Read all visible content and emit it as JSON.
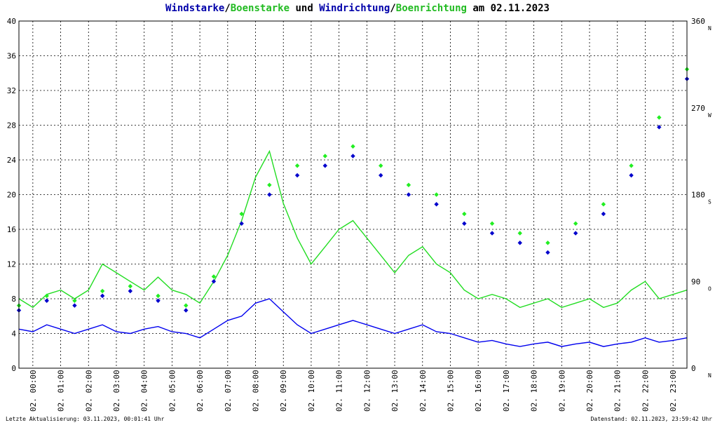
{
  "title": {
    "part1": "Windstarke",
    "sep1": "/",
    "part2": "Boenstarke",
    "part3": " und ",
    "part4": "Windrichtung",
    "sep2": "/",
    "part5": "Boenrichtung",
    "part6": " am 02.11.2023"
  },
  "footer": {
    "left": "Letzte Aktualisierung: 03.11.2023, 00:01:41 Uhr",
    "right": "Datenstand: 02.11.2023, 23:59:42 Uhr"
  },
  "colors": {
    "wind": "#0000ee",
    "gust": "#22dd22",
    "direction": "#0000cc",
    "gust_direction": "#22ee22",
    "grid": "#000000"
  },
  "chart_data": {
    "type": "line",
    "x_label_prefix": "02.",
    "x_ticks": [
      "00:00",
      "01:00",
      "02:00",
      "03:00",
      "04:00",
      "05:00",
      "06:00",
      "07:00",
      "08:00",
      "09:00",
      "10:00",
      "11:00",
      "12:00",
      "13:00",
      "14:00",
      "15:00",
      "16:00",
      "17:00",
      "18:00",
      "19:00",
      "20:00",
      "21:00",
      "22:00",
      "23:00"
    ],
    "xlim_hours": [
      0,
      24
    ],
    "ylim_left": [
      0,
      40
    ],
    "y_ticks_left": [
      "0",
      "4",
      "8",
      "12",
      "16",
      "20",
      "24",
      "28",
      "32",
      "36",
      "40"
    ],
    "ylim_right": [
      0,
      360
    ],
    "y_ticks_right": [
      {
        "value": 0,
        "label": "0",
        "dir": "N"
      },
      {
        "value": 90,
        "label": "90",
        "dir": "O"
      },
      {
        "value": 180,
        "label": "180",
        "dir": "S"
      },
      {
        "value": 270,
        "label": "270",
        "dir": "W"
      },
      {
        "value": 360,
        "label": "360",
        "dir": "N"
      }
    ],
    "grid": true,
    "series": [
      {
        "name": "Windstarke",
        "axis": "left",
        "hours": [
          0,
          0.5,
          1,
          1.5,
          2,
          2.5,
          3,
          3.5,
          4,
          4.5,
          5,
          5.5,
          6,
          6.5,
          7,
          7.5,
          8,
          8.5,
          9,
          9.5,
          10,
          10.5,
          11,
          11.5,
          12,
          12.5,
          13,
          13.5,
          14,
          14.5,
          15,
          15.5,
          16,
          16.5,
          17,
          17.5,
          18,
          18.5,
          19,
          19.5,
          20,
          20.5,
          21,
          21.5,
          22,
          22.5,
          23,
          23.5,
          24
        ],
        "values": [
          4.5,
          4.2,
          5,
          4.5,
          4,
          4.5,
          5,
          4.2,
          4,
          4.5,
          4.8,
          4.2,
          4,
          3.5,
          4.5,
          5.5,
          6,
          7.5,
          8,
          6.5,
          5,
          4,
          4.5,
          5,
          5.5,
          5,
          4.5,
          4,
          4.5,
          5,
          4.2,
          4,
          3.5,
          3,
          3.2,
          2.8,
          2.5,
          2.8,
          3,
          2.5,
          2.8,
          3,
          2.5,
          2.8,
          3,
          3.5,
          3,
          3.2,
          3.5
        ]
      },
      {
        "name": "Boenstarke",
        "axis": "left",
        "hours": [
          0,
          0.5,
          1,
          1.5,
          2,
          2.5,
          3,
          3.5,
          4,
          4.5,
          5,
          5.5,
          6,
          6.5,
          7,
          7.5,
          8,
          8.5,
          9,
          9.5,
          10,
          10.5,
          11,
          11.5,
          12,
          12.5,
          13,
          13.5,
          14,
          14.5,
          15,
          15.5,
          16,
          16.5,
          17,
          17.5,
          18,
          18.5,
          19,
          19.5,
          20,
          20.5,
          21,
          21.5,
          22,
          22.5,
          23,
          23.5,
          24
        ],
        "values": [
          8,
          7,
          8.5,
          9,
          8,
          9,
          12,
          11,
          10,
          9,
          10.5,
          9,
          8.5,
          7.5,
          10,
          13,
          17,
          22,
          25,
          19,
          15,
          12,
          14,
          16,
          17,
          15,
          13,
          11,
          13,
          14,
          12,
          11,
          9,
          8,
          8.5,
          8,
          7,
          7.5,
          8,
          7,
          7.5,
          8,
          7,
          7.5,
          9,
          10,
          8,
          8.5,
          9
        ]
      },
      {
        "name": "Windrichtung",
        "axis": "right",
        "hours": [
          0,
          1,
          2,
          3,
          4,
          5,
          6,
          7,
          8,
          9,
          10,
          11,
          12,
          13,
          14,
          15,
          16,
          17,
          18,
          19,
          20,
          21,
          22,
          23,
          24
        ],
        "values": [
          60,
          70,
          65,
          75,
          80,
          70,
          60,
          90,
          150,
          180,
          200,
          210,
          220,
          200,
          180,
          170,
          150,
          140,
          130,
          120,
          140,
          160,
          200,
          250,
          300
        ]
      },
      {
        "name": "Boenrichtung",
        "axis": "right",
        "hours": [
          0,
          1,
          2,
          3,
          4,
          5,
          6,
          7,
          8,
          9,
          10,
          11,
          12,
          13,
          14,
          15,
          16,
          17,
          18,
          19,
          20,
          21,
          22,
          23,
          24
        ],
        "values": [
          65,
          75,
          70,
          80,
          85,
          75,
          65,
          95,
          160,
          190,
          210,
          220,
          230,
          210,
          190,
          180,
          160,
          150,
          140,
          130,
          150,
          170,
          210,
          260,
          310
        ]
      }
    ]
  }
}
